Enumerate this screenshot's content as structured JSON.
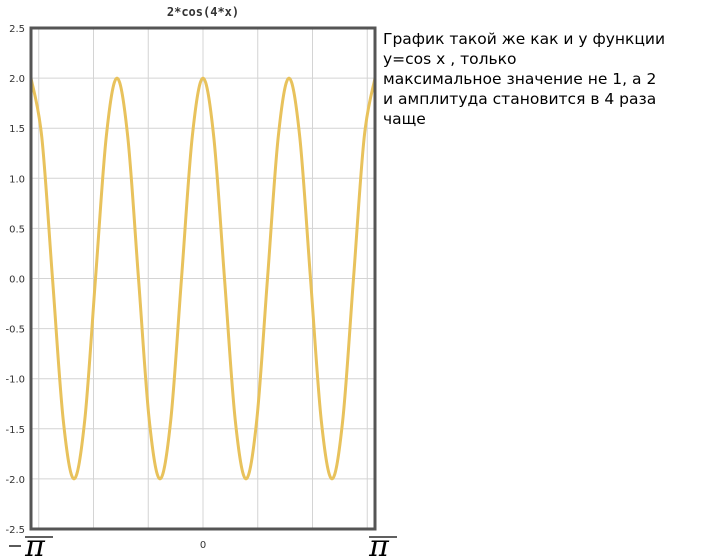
{
  "chart_data": {
    "type": "line",
    "title": "2*cos(4*x)",
    "xlim": [
      -3.1416,
      3.1416
    ],
    "ylim": [
      -2.5,
      2.5
    ],
    "grid": true,
    "x_gridlines": [
      -3,
      -2,
      -1,
      0,
      1,
      2,
      3
    ],
    "y_ticks": [
      "2.5",
      "2.0",
      "1.5",
      "1.0",
      "0.5",
      "0.0",
      "-0.5",
      "-1.0",
      "-1.5",
      "-2.0",
      "-2.5"
    ],
    "x_ticks": [
      {
        "value": -3.1416,
        "label": "-π"
      },
      {
        "value": 0,
        "label": "0"
      },
      {
        "value": 3.1416,
        "label": "π"
      }
    ],
    "line_color": "#e8c25c",
    "series": [
      {
        "x": [
          -3.1416,
          -2.9452,
          -2.7489,
          -2.5525,
          -2.3562,
          -2.1598,
          -1.9635,
          -1.7671,
          -1.5708,
          -1.3744,
          -1.1781,
          -0.9817,
          -0.7854,
          -0.589,
          -0.3927,
          -0.1963,
          0,
          0.1963,
          0.3927,
          0.589,
          0.7854,
          0.9817,
          1.1781,
          1.3744,
          1.5708,
          1.7671,
          1.9635,
          2.1598,
          2.3562,
          2.5525,
          2.7489,
          2.9452,
          3.1416
        ],
        "y": [
          2,
          1.414,
          0,
          -1.414,
          -2,
          -1.414,
          0,
          1.414,
          2,
          1.414,
          0,
          -1.414,
          -2,
          -1.414,
          0,
          1.414,
          2,
          1.414,
          0,
          -1.414,
          -2,
          -1.414,
          0,
          1.414,
          2,
          1.414,
          0,
          -1.414,
          -2,
          -1.414,
          0,
          1.414,
          2
        ]
      }
    ]
  },
  "note": {
    "lines": [
      "График такой же как и у функции",
      "y=cos x , только",
      "максимальное значение не 1, а 2",
      "и амплитуда становится в 4 раза",
      "чаще"
    ]
  }
}
